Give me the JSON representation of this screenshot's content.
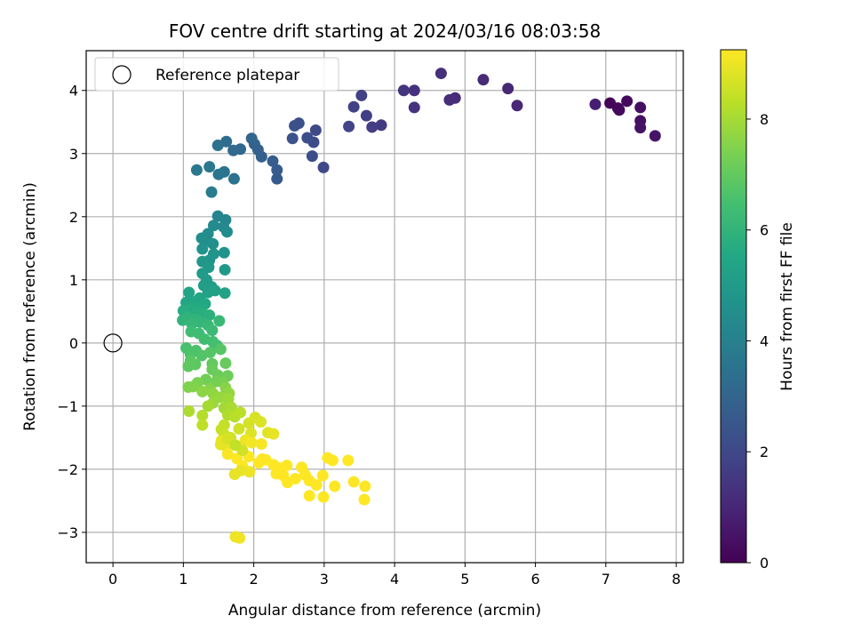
{
  "chart_data": {
    "type": "scatter",
    "title": "FOV centre drift starting at 2024/03/16 08:03:58",
    "xlabel": "Angular distance from reference (arcmin)",
    "ylabel": "Rotation from reference (arcmin)",
    "colorbar_label": "Hours from first FF file",
    "xlim": [
      -0.38,
      8.1
    ],
    "ylim": [
      -3.48,
      4.63
    ],
    "clim": [
      0,
      9.25
    ],
    "xticks": [
      0,
      1,
      2,
      3,
      4,
      5,
      6,
      7,
      8
    ],
    "yticks": [
      -3,
      -2,
      -1,
      0,
      1,
      2,
      3,
      4
    ],
    "cticks": [
      0,
      2,
      4,
      6,
      8
    ],
    "colormap": "viridis",
    "grid": true,
    "legend": {
      "location": "upper-left",
      "entries": [
        "Reference platepar"
      ]
    },
    "reference_point": {
      "x": 0,
      "y": 0
    },
    "points": [
      [
        7.06,
        3.8,
        0.1
      ],
      [
        7.17,
        3.72,
        0.15
      ],
      [
        7.19,
        3.69,
        0.2
      ],
      [
        7.3,
        3.83,
        0.25
      ],
      [
        7.49,
        3.73,
        0.35
      ],
      [
        7.49,
        3.52,
        0.4
      ],
      [
        7.49,
        3.41,
        0.45
      ],
      [
        7.7,
        3.28,
        0.5
      ],
      [
        6.85,
        3.78,
        0.8
      ],
      [
        5.74,
        3.76,
        1.0
      ],
      [
        5.61,
        4.03,
        1.05
      ],
      [
        5.26,
        4.17,
        1.1
      ],
      [
        4.86,
        3.88,
        1.15
      ],
      [
        4.78,
        3.85,
        1.2
      ],
      [
        4.66,
        4.27,
        1.25
      ],
      [
        4.28,
        4.0,
        1.3
      ],
      [
        4.28,
        3.73,
        1.35
      ],
      [
        4.13,
        4.0,
        1.4
      ],
      [
        3.81,
        3.45,
        1.6
      ],
      [
        3.68,
        3.42,
        1.65
      ],
      [
        3.6,
        3.6,
        1.7
      ],
      [
        3.53,
        3.92,
        1.75
      ],
      [
        3.42,
        3.74,
        1.8
      ],
      [
        3.35,
        3.43,
        1.85
      ],
      [
        2.99,
        2.78,
        2.0
      ],
      [
        2.88,
        3.37,
        2.05
      ],
      [
        2.85,
        3.18,
        2.1
      ],
      [
        2.83,
        2.96,
        2.15
      ],
      [
        2.76,
        3.25,
        2.2
      ],
      [
        2.64,
        3.48,
        2.25
      ],
      [
        2.58,
        3.44,
        2.3
      ],
      [
        2.55,
        3.24,
        2.35
      ],
      [
        2.33,
        2.6,
        2.6
      ],
      [
        2.33,
        2.74,
        2.65
      ],
      [
        2.27,
        2.88,
        2.7
      ],
      [
        2.11,
        2.95,
        2.8
      ],
      [
        2.06,
        3.06,
        2.85
      ],
      [
        2.01,
        3.15,
        2.9
      ],
      [
        1.97,
        3.24,
        3.0
      ],
      [
        1.81,
        3.07,
        3.1
      ],
      [
        1.71,
        3.05,
        3.2
      ],
      [
        1.61,
        3.19,
        3.3
      ],
      [
        1.49,
        3.13,
        3.4
      ],
      [
        1.72,
        2.6,
        3.5
      ],
      [
        1.58,
        2.71,
        3.55
      ],
      [
        1.5,
        2.67,
        3.6
      ],
      [
        1.37,
        2.79,
        3.65
      ],
      [
        1.19,
        2.74,
        3.7
      ],
      [
        1.4,
        2.39,
        3.8
      ],
      [
        1.49,
        2.01,
        4.1
      ],
      [
        1.6,
        1.95,
        4.2
      ],
      [
        1.57,
        1.84,
        4.3
      ],
      [
        1.43,
        1.86,
        4.35
      ],
      [
        1.35,
        1.73,
        4.4
      ],
      [
        1.62,
        1.76,
        4.45
      ],
      [
        1.33,
        1.63,
        4.5
      ],
      [
        1.26,
        1.66,
        4.55
      ],
      [
        1.42,
        1.57,
        4.6
      ],
      [
        1.27,
        1.49,
        4.65
      ],
      [
        1.58,
        1.43,
        4.7
      ],
      [
        1.43,
        1.41,
        4.75
      ],
      [
        1.37,
        1.31,
        4.8
      ],
      [
        1.27,
        1.29,
        4.85
      ],
      [
        1.36,
        1.2,
        4.9
      ],
      [
        1.59,
        1.16,
        4.95
      ],
      [
        1.27,
        1.1,
        5.0
      ],
      [
        1.33,
        1.0,
        5.05
      ],
      [
        1.29,
        0.91,
        5.1
      ],
      [
        1.4,
        0.89,
        5.15
      ],
      [
        1.45,
        0.83,
        5.2
      ],
      [
        1.35,
        0.8,
        5.25
      ],
      [
        1.59,
        0.79,
        5.3
      ],
      [
        1.08,
        0.8,
        5.35
      ],
      [
        1.23,
        0.71,
        5.4
      ],
      [
        1.15,
        0.65,
        5.45
      ],
      [
        1.04,
        0.64,
        5.5
      ],
      [
        1.31,
        0.62,
        5.55
      ],
      [
        1.23,
        0.56,
        5.6
      ],
      [
        1.1,
        0.55,
        5.65
      ],
      [
        1.0,
        0.51,
        5.7
      ],
      [
        1.2,
        0.48,
        5.75
      ],
      [
        1.29,
        0.46,
        5.8
      ],
      [
        1.37,
        0.44,
        5.85
      ],
      [
        1.06,
        0.41,
        5.9
      ],
      [
        1.17,
        0.38,
        5.95
      ],
      [
        0.99,
        0.36,
        6.0
      ],
      [
        1.24,
        0.33,
        6.05
      ],
      [
        1.12,
        0.3,
        6.1
      ],
      [
        1.35,
        0.28,
        6.15
      ],
      [
        1.51,
        0.35,
        6.2
      ],
      [
        1.41,
        0.2,
        6.25
      ],
      [
        1.22,
        0.15,
        6.3
      ],
      [
        1.11,
        0.18,
        6.35
      ],
      [
        1.3,
        0.06,
        6.4
      ],
      [
        1.42,
        0.02,
        6.45
      ],
      [
        1.48,
        -0.04,
        6.5
      ],
      [
        1.04,
        -0.08,
        6.55
      ],
      [
        1.18,
        -0.12,
        6.6
      ],
      [
        1.1,
        -0.18,
        6.65
      ],
      [
        1.26,
        -0.2,
        6.7
      ],
      [
        1.38,
        -0.15,
        6.75
      ],
      [
        1.53,
        -0.1,
        6.8
      ],
      [
        1.1,
        -0.28,
        6.85
      ],
      [
        1.17,
        -0.34,
        6.9
      ],
      [
        1.07,
        -0.37,
        6.95
      ],
      [
        1.41,
        -0.33,
        7.0
      ],
      [
        1.6,
        -0.32,
        7.05
      ],
      [
        1.41,
        -0.42,
        7.1
      ],
      [
        1.49,
        -0.51,
        7.15
      ],
      [
        1.63,
        -0.52,
        7.2
      ],
      [
        1.32,
        -0.58,
        7.25
      ],
      [
        1.47,
        -0.61,
        7.3
      ],
      [
        1.56,
        -0.62,
        7.35
      ],
      [
        1.2,
        -0.63,
        7.4
      ],
      [
        1.07,
        -0.7,
        7.45
      ],
      [
        1.14,
        -0.69,
        7.5
      ],
      [
        1.38,
        -0.73,
        7.55
      ],
      [
        1.6,
        -0.71,
        7.6
      ],
      [
        1.27,
        -0.77,
        7.65
      ],
      [
        1.42,
        -0.8,
        7.7
      ],
      [
        1.65,
        -0.8,
        7.75
      ],
      [
        1.52,
        -0.86,
        7.8
      ],
      [
        1.42,
        -0.95,
        7.85
      ],
      [
        1.64,
        -0.89,
        7.9
      ],
      [
        1.58,
        -1.03,
        7.95
      ],
      [
        1.35,
        -1.0,
        8.0
      ],
      [
        1.68,
        -1.02,
        8.05
      ],
      [
        1.08,
        -1.08,
        8.1
      ],
      [
        1.63,
        -1.14,
        8.15
      ],
      [
        1.27,
        -1.15,
        8.2
      ],
      [
        1.73,
        -1.17,
        8.25
      ],
      [
        1.81,
        -1.1,
        8.3
      ],
      [
        1.27,
        -1.3,
        8.35
      ],
      [
        1.58,
        -1.3,
        8.4
      ],
      [
        1.54,
        -1.37,
        8.45
      ],
      [
        1.58,
        -1.45,
        8.5
      ],
      [
        1.67,
        -1.5,
        8.55
      ],
      [
        1.79,
        -1.36,
        8.6
      ],
      [
        1.93,
        -1.27,
        8.65
      ],
      [
        2.02,
        -1.18,
        8.7
      ],
      [
        2.1,
        -1.25,
        8.75
      ],
      [
        1.96,
        -1.43,
        8.8
      ],
      [
        2.2,
        -1.42,
        8.85
      ],
      [
        2.28,
        -1.44,
        8.9
      ],
      [
        1.54,
        -1.55,
        8.95
      ],
      [
        1.6,
        -1.63,
        9.0
      ],
      [
        1.88,
        -1.54,
        9.05
      ],
      [
        1.97,
        -1.58,
        9.1
      ],
      [
        2.11,
        -1.6,
        9.15
      ],
      [
        1.63,
        -1.76,
        9.18
      ],
      [
        1.93,
        -1.8,
        9.2
      ],
      [
        2.12,
        -1.84,
        9.22
      ],
      [
        1.76,
        -1.83,
        9.23
      ],
      [
        1.84,
        -1.95,
        9.24
      ],
      [
        2.07,
        -1.9,
        9.25
      ],
      [
        2.17,
        -1.85,
        9.25
      ],
      [
        2.28,
        -1.93,
        9.25
      ],
      [
        2.36,
        -1.98,
        9.25
      ],
      [
        2.47,
        -1.94,
        9.25
      ],
      [
        2.32,
        -2.07,
        9.25
      ],
      [
        2.42,
        -2.1,
        9.25
      ],
      [
        2.48,
        -2.21,
        9.25
      ],
      [
        2.59,
        -2.15,
        9.25
      ],
      [
        2.68,
        -1.97,
        9.25
      ],
      [
        2.73,
        -2.09,
        9.25
      ],
      [
        2.79,
        -2.18,
        9.25
      ],
      [
        2.89,
        -2.25,
        9.25
      ],
      [
        2.98,
        -2.1,
        9.25
      ],
      [
        3.05,
        -1.82,
        9.25
      ],
      [
        3.12,
        -1.86,
        9.25
      ],
      [
        3.15,
        -2.27,
        9.25
      ],
      [
        2.79,
        -2.42,
        9.25
      ],
      [
        2.99,
        -2.44,
        9.25
      ],
      [
        3.34,
        -1.86,
        9.25
      ],
      [
        3.42,
        -2.2,
        9.25
      ],
      [
        3.58,
        -2.27,
        9.25
      ],
      [
        3.57,
        -2.48,
        9.25
      ],
      [
        1.73,
        -2.08,
        8.9
      ],
      [
        1.82,
        -2.02,
        8.95
      ],
      [
        1.94,
        -2.04,
        9.0
      ],
      [
        1.74,
        -3.07,
        9.0
      ],
      [
        1.8,
        -3.09,
        9.05
      ],
      [
        1.53,
        -1.61,
        8.9
      ],
      [
        1.63,
        -1.52,
        8.7
      ],
      [
        1.84,
        -1.7,
        8.6
      ],
      [
        1.74,
        -1.62,
        8.4
      ]
    ]
  }
}
